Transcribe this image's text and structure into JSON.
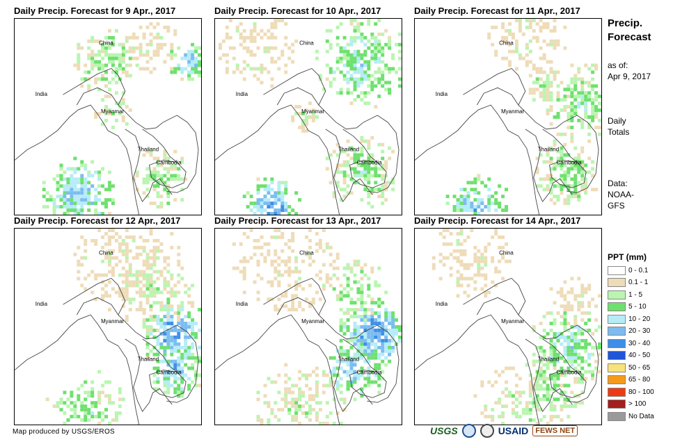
{
  "panels": [
    {
      "title": "Daily Precip. Forecast for 9 Apr., 2017",
      "labels": {
        "china": "China",
        "india": "India",
        "myanmar": "Myanmar",
        "thailand": "Thailand",
        "cambodia": "Cambodia"
      }
    },
    {
      "title": "Daily Precip. Forecast for 10 Apr., 2017",
      "labels": {
        "china": "China",
        "india": "India",
        "myanmar": "Myanmar",
        "thailand": "Thailand",
        "cambodia": "Cambodia"
      }
    },
    {
      "title": "Daily Precip. Forecast for 11 Apr., 2017",
      "labels": {
        "china": "China",
        "india": "India",
        "myanmar": "Myanmar",
        "thailand": "Thailand",
        "cambodia": "Cambodia"
      }
    },
    {
      "title": "Daily Precip. Forecast for 12 Apr., 2017",
      "labels": {
        "china": "China",
        "india": "India",
        "myanmar": "Myanmar",
        "thailand": "Thailand",
        "cambodia": "Cambodia"
      }
    },
    {
      "title": "Daily Precip. Forecast for 13 Apr., 2017",
      "labels": {
        "china": "China",
        "india": "India",
        "myanmar": "Myanmar",
        "thailand": "Thailand",
        "cambodia": "Cambodia"
      }
    },
    {
      "title": "Daily Precip. Forecast for 14 Apr., 2017",
      "labels": {
        "china": "China",
        "india": "India",
        "myanmar": "Myanmar",
        "thailand": "Thailand",
        "cambodia": "Cambodia"
      }
    }
  ],
  "side": {
    "title_line1": "Precip.",
    "title_line2": "Forecast",
    "asof_line1": "as of:",
    "asof_line2": "Apr 9, 2017",
    "daily_line1": "Daily",
    "daily_line2": "Totals",
    "data_line1": "Data:",
    "data_line2": "NOAA-",
    "data_line3": "GFS"
  },
  "legend": {
    "title": "PPT (mm)",
    "items": [
      {
        "label": "0 - 0.1",
        "color": "#ffffff"
      },
      {
        "label": "0.1 - 1",
        "color": "#eedcb8"
      },
      {
        "label": "1 - 5",
        "color": "#b9f5b0"
      },
      {
        "label": "5 - 10",
        "color": "#6ee06e"
      },
      {
        "label": "10 - 20",
        "color": "#b5ecf7"
      },
      {
        "label": "20 - 30",
        "color": "#7cbcf0"
      },
      {
        "label": "30 - 40",
        "color": "#3f8ee8"
      },
      {
        "label": "40 - 50",
        "color": "#1f56d8"
      },
      {
        "label": "50 - 65",
        "color": "#f7e37a"
      },
      {
        "label": "65 - 80",
        "color": "#f59a1a"
      },
      {
        "label": "80 - 100",
        "color": "#ee3a12"
      },
      {
        "label": "> 100",
        "color": "#a51d1d"
      },
      {
        "label": "No Data",
        "color": "#9a9a9a"
      }
    ]
  },
  "footer": {
    "credit": "Map produced by USGS/EROS",
    "logo_usgs": "USGS",
    "logo_usaid": "USAID",
    "logo_fews": "FEWS NET"
  }
}
